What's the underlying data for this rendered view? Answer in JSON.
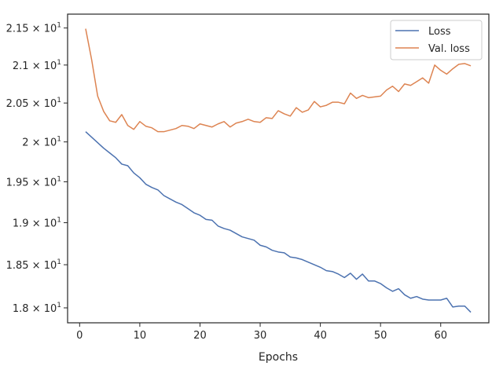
{
  "chart_data": {
    "type": "line",
    "title": "",
    "xlabel": "Epochs",
    "ylabel": "",
    "xlim": [
      -2,
      68
    ],
    "ylim": [
      17.83,
      21.69
    ],
    "yscale": "log",
    "grid": false,
    "legend_position": "top-right",
    "xticks": [
      0,
      10,
      20,
      30,
      40,
      50,
      60
    ],
    "yticks": [
      {
        "value": 18.0,
        "mantissa": "1.8"
      },
      {
        "value": 18.5,
        "mantissa": "1.85"
      },
      {
        "value": 19.0,
        "mantissa": "1.9"
      },
      {
        "value": 19.5,
        "mantissa": "1.95"
      },
      {
        "value": 20.0,
        "mantissa": "2"
      },
      {
        "value": 20.5,
        "mantissa": "2.05"
      },
      {
        "value": 21.0,
        "mantissa": "2.1"
      },
      {
        "value": 21.5,
        "mantissa": "2.15"
      }
    ],
    "tick_multiplier": "× 10",
    "tick_exponent": "1",
    "x": [
      1,
      2,
      3,
      4,
      5,
      6,
      7,
      8,
      9,
      10,
      11,
      12,
      13,
      14,
      15,
      16,
      17,
      18,
      19,
      20,
      21,
      22,
      23,
      24,
      25,
      26,
      27,
      28,
      29,
      30,
      31,
      32,
      33,
      34,
      35,
      36,
      37,
      38,
      39,
      40,
      41,
      42,
      43,
      44,
      45,
      46,
      47,
      48,
      49,
      50,
      51,
      52,
      53,
      54,
      55,
      56,
      57,
      58,
      59,
      60,
      61,
      62,
      63,
      64,
      65
    ],
    "series": [
      {
        "name": "Loss",
        "color": "#4c72b0",
        "values": [
          20.13,
          20.06,
          19.99,
          19.92,
          19.86,
          19.8,
          19.72,
          19.7,
          19.61,
          19.55,
          19.47,
          19.43,
          19.4,
          19.33,
          19.29,
          19.25,
          19.22,
          19.17,
          19.12,
          19.09,
          19.04,
          19.03,
          18.96,
          18.93,
          18.91,
          18.87,
          18.83,
          18.81,
          18.79,
          18.73,
          18.71,
          18.67,
          18.65,
          18.64,
          18.59,
          18.58,
          18.56,
          18.53,
          18.5,
          18.47,
          18.43,
          18.42,
          18.39,
          18.35,
          18.4,
          18.33,
          18.39,
          18.31,
          18.31,
          18.28,
          18.23,
          18.19,
          18.22,
          18.15,
          18.11,
          18.13,
          18.1,
          18.09,
          18.09,
          18.09,
          18.11,
          18.01,
          18.02,
          18.02,
          17.95
        ]
      },
      {
        "name": "Val. loss",
        "color": "#dd8452",
        "values": [
          21.49,
          21.07,
          20.59,
          20.39,
          20.27,
          20.25,
          20.35,
          20.21,
          20.16,
          20.26,
          20.2,
          20.18,
          20.13,
          20.13,
          20.15,
          20.17,
          20.21,
          20.2,
          20.17,
          20.23,
          20.21,
          20.19,
          20.23,
          20.26,
          20.19,
          20.24,
          20.26,
          20.29,
          20.26,
          20.25,
          20.31,
          20.3,
          20.4,
          20.36,
          20.33,
          20.44,
          20.38,
          20.41,
          20.52,
          20.45,
          20.47,
          20.51,
          20.51,
          20.49,
          20.63,
          20.56,
          20.6,
          20.57,
          20.58,
          20.59,
          20.67,
          20.72,
          20.65,
          20.75,
          20.73,
          20.78,
          20.83,
          20.76,
          21.0,
          20.93,
          20.88,
          20.95,
          21.01,
          21.02,
          20.99
        ]
      }
    ]
  }
}
